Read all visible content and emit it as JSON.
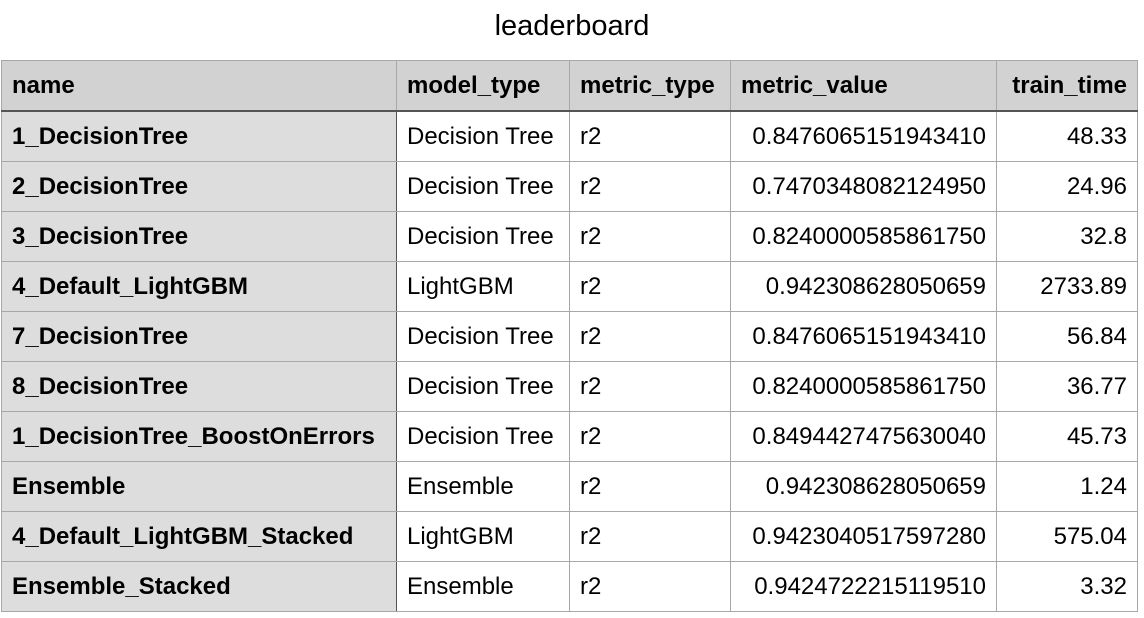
{
  "title": "leaderboard",
  "table": {
    "columns": [
      "name",
      "model_type",
      "metric_type",
      "metric_value",
      "train_time"
    ],
    "rows": [
      [
        "1_DecisionTree",
        "Decision Tree",
        "r2",
        "0.8476065151943410",
        "48.33"
      ],
      [
        "2_DecisionTree",
        "Decision Tree",
        "r2",
        "0.7470348082124950",
        "24.96"
      ],
      [
        "3_DecisionTree",
        "Decision Tree",
        "r2",
        "0.8240000585861750",
        "32.8"
      ],
      [
        "4_Default_LightGBM",
        "LightGBM",
        "r2",
        "0.942308628050659",
        "2733.89"
      ],
      [
        "7_DecisionTree",
        "Decision Tree",
        "r2",
        "0.8476065151943410",
        "56.84"
      ],
      [
        "8_DecisionTree",
        "Decision Tree",
        "r2",
        "0.8240000585861750",
        "36.77"
      ],
      [
        "1_DecisionTree_BoostOnErrors",
        "Decision Tree",
        "r2",
        "0.8494427475630040",
        "45.73"
      ],
      [
        "Ensemble",
        "Ensemble",
        "r2",
        "0.942308628050659",
        "1.24"
      ],
      [
        "4_Default_LightGBM_Stacked",
        "LightGBM",
        "r2",
        "0.9423040517597280",
        "575.04"
      ],
      [
        "Ensemble_Stacked",
        "Ensemble",
        "r2",
        "0.9424722215119510",
        "3.32"
      ]
    ]
  }
}
